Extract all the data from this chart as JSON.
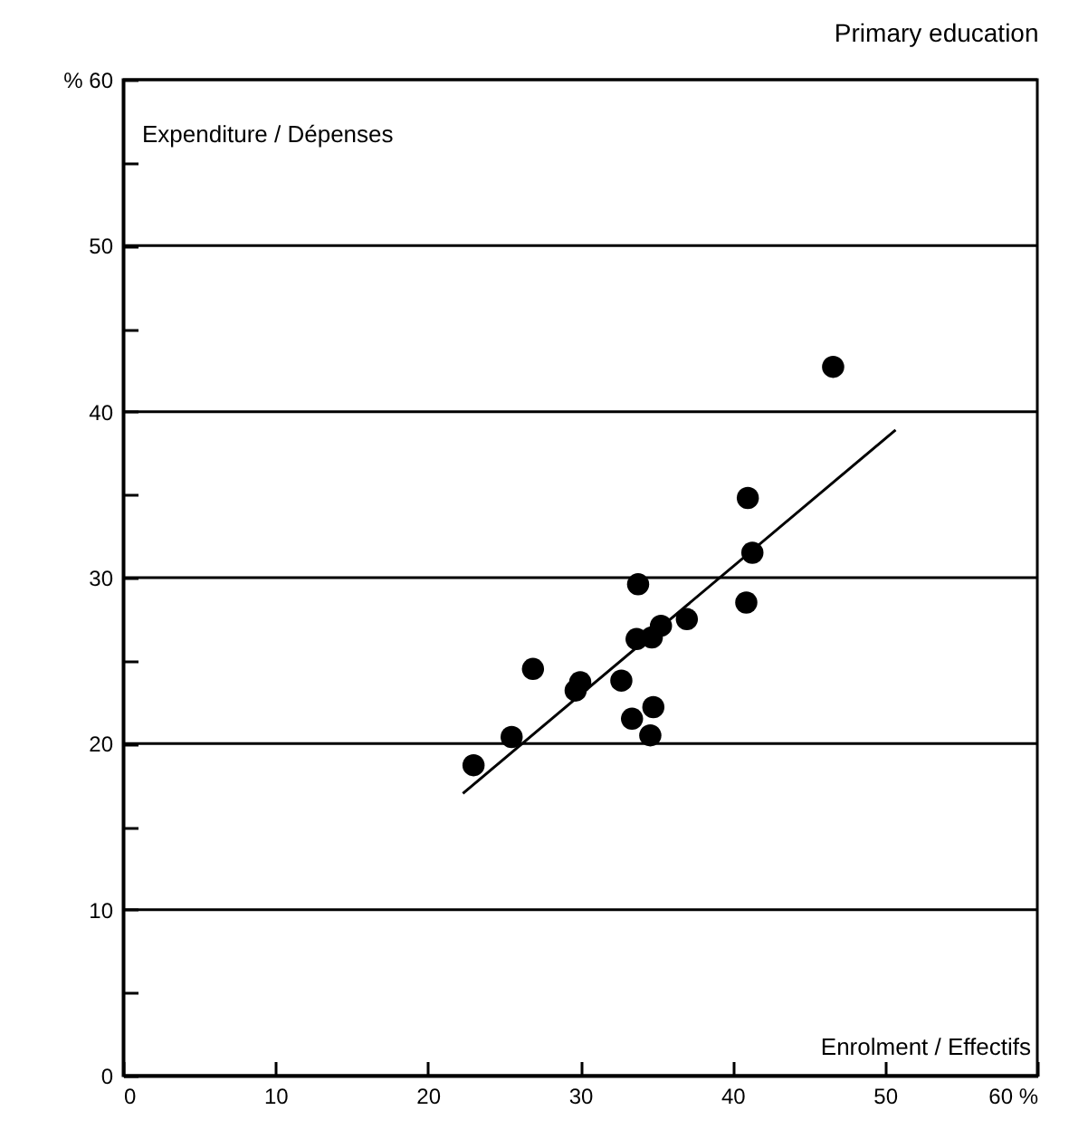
{
  "chart_data": {
    "type": "scatter",
    "title": "Primary education",
    "xlabel": "Enrolment / Effectifs",
    "ylabel": "Expenditure / Dépenses",
    "xlim": [
      0,
      60
    ],
    "ylim": [
      0,
      60
    ],
    "xticks": [
      0,
      10,
      20,
      30,
      40,
      50,
      {
        "value": 60,
        "label": "60 %"
      }
    ],
    "yticks": [
      0,
      {
        "value": 5,
        "label": null
      },
      10,
      {
        "value": 15,
        "label": null
      },
      20,
      {
        "value": 25,
        "label": null
      },
      30,
      {
        "value": 35,
        "label": null
      },
      40,
      {
        "value": 45,
        "label": null
      },
      50,
      {
        "value": 55,
        "label": null
      },
      {
        "value": 60,
        "label": "% 60"
      }
    ],
    "grid": "y",
    "series": [
      {
        "color": "#000000",
        "marker": "circle",
        "x": [
          46.6,
          41.0,
          41.3,
          40.9,
          33.8,
          37.0,
          35.3,
          34.7,
          33.7,
          26.9,
          30.0,
          29.7,
          32.7,
          34.8,
          33.4,
          34.6,
          25.5,
          23.0
        ],
        "values": [
          42.7,
          34.8,
          31.5,
          28.5,
          29.6,
          27.5,
          27.1,
          26.4,
          26.3,
          24.5,
          23.7,
          23.2,
          23.8,
          22.2,
          21.5,
          20.5,
          20.4,
          18.7
        ]
      },
      {
        "type": "line",
        "color": "#000000",
        "x": [
          22.3,
          50.7
        ],
        "values": [
          17.0,
          38.9
        ]
      }
    ]
  }
}
